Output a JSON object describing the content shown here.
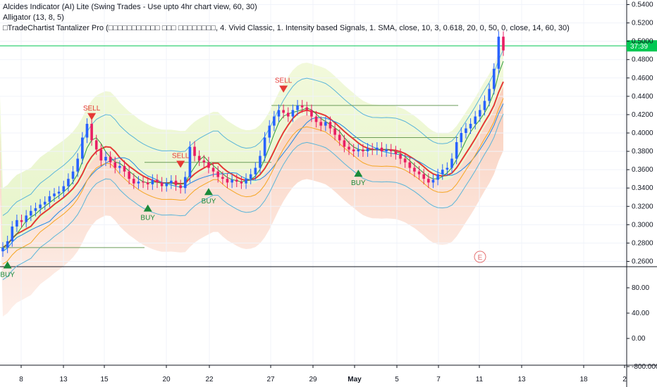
{
  "indicators": [
    "Alcides Indicator (AI) Lite (Swing Trades - Use upto 4hr chart view, 60, 30)",
    "Alligator (13, 8, 5)",
    "□TradeChartist Tantalizer Pro (□□□□□□□□□□□ □□□ □□□□□□□□, 4. Vivid Classic, 1. Intensity based Signals, 1. SMA, close, 10, 3, 0.618, 20, 0, 50, 0, close, 14, 60, 30)"
  ],
  "price_tag": "37:39",
  "event_marker": "E",
  "colors": {
    "up": "#2962ff",
    "down": "#e91e63",
    "buy": "#1b8a3a",
    "sell": "#e53935",
    "alligator_red": "#e53935",
    "price_line": "#00c853"
  },
  "chart_data": [
    {
      "type": "candlestick",
      "title": "",
      "y_axis": {
        "range": [
          0.255,
          0.545
        ],
        "ticks": [
          "0.5400",
          "0.5200",
          "0.5000",
          "0.4800",
          "0.4600",
          "0.4400",
          "0.4200",
          "0.4000",
          "0.3800",
          "0.3600",
          "0.3400",
          "0.3200",
          "0.3000",
          "0.2800",
          "0.2600"
        ],
        "tick_values": [
          0.54,
          0.52,
          0.5,
          0.48,
          0.46,
          0.44,
          0.42,
          0.4,
          0.38,
          0.36,
          0.34,
          0.32,
          0.3,
          0.28,
          0.26
        ]
      },
      "x_axis": {
        "ticks": [
          "8",
          "13",
          "15",
          "20",
          "22",
          "27",
          "29",
          "May",
          "5",
          "7",
          "11",
          "13",
          "18",
          "2"
        ]
      },
      "closes": [
        0.275,
        0.282,
        0.298,
        0.305,
        0.303,
        0.31,
        0.315,
        0.318,
        0.322,
        0.325,
        0.331,
        0.334,
        0.336,
        0.342,
        0.35,
        0.358,
        0.372,
        0.395,
        0.41,
        0.392,
        0.382,
        0.37,
        0.374,
        0.368,
        0.362,
        0.364,
        0.358,
        0.35,
        0.345,
        0.347,
        0.346,
        0.344,
        0.349,
        0.346,
        0.342,
        0.345,
        0.348,
        0.343,
        0.34,
        0.352,
        0.385,
        0.375,
        0.37,
        0.368,
        0.362,
        0.358,
        0.352,
        0.35,
        0.346,
        0.349,
        0.347,
        0.345,
        0.35,
        0.355,
        0.362,
        0.375,
        0.395,
        0.408,
        0.418,
        0.425,
        0.422,
        0.418,
        0.425,
        0.43,
        0.428,
        0.425,
        0.418,
        0.412,
        0.408,
        0.412,
        0.405,
        0.398,
        0.392,
        0.385,
        0.382,
        0.38,
        0.382,
        0.38,
        0.383,
        0.382,
        0.384,
        0.38,
        0.382,
        0.38,
        0.377,
        0.372,
        0.368,
        0.362,
        0.358,
        0.355,
        0.35,
        0.346,
        0.349,
        0.355,
        0.36,
        0.362,
        0.372,
        0.39,
        0.4,
        0.405,
        0.41,
        0.418,
        0.425,
        0.435,
        0.448,
        0.47,
        0.505,
        0.49
      ],
      "opens_note": "",
      "signals": [
        {
          "label": "BUY",
          "index": 1
        },
        {
          "label": "SELL",
          "index": 19
        },
        {
          "label": "BUY",
          "index": 31
        },
        {
          "label": "SELL",
          "index": 38
        },
        {
          "label": "BUY",
          "index": 44
        },
        {
          "label": "SELL",
          "index": 60
        },
        {
          "label": "BUY",
          "index": 76
        }
      ],
      "last_price": 0.495
    },
    {
      "type": "line",
      "title": "",
      "y_axis": {
        "ticks": [
          "80.00",
          "40.00",
          "0.00",
          "-800.000"
        ],
        "tick_values": [
          80,
          40,
          0,
          -800
        ]
      }
    }
  ]
}
